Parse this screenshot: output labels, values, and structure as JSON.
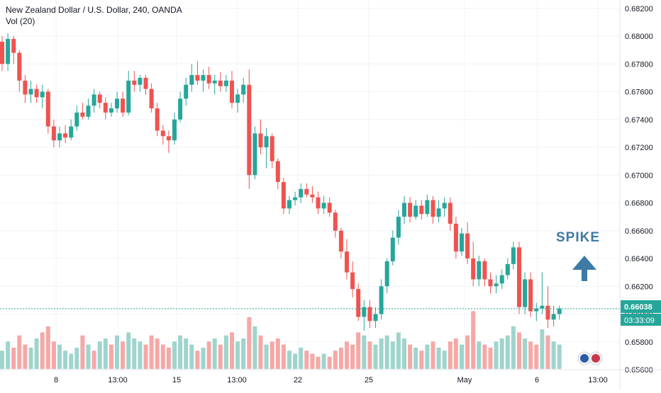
{
  "header": {
    "title": "New Zealand Dollar / U.S. Dollar, 240, OANDA",
    "volume_label": "Vol (20)"
  },
  "annotation": {
    "text": "SPIKE",
    "arrow_icon": "arrow-up-icon",
    "color": "#3d7aa6"
  },
  "price_tags": {
    "last_price": "0.66038",
    "countdown": "03:33:09",
    "color": "#26a69a"
  },
  "colors": {
    "up": "#26a69a",
    "down": "#ef5350",
    "vol_up": "#9fd4cd",
    "vol_down": "#f5a8a6",
    "grid": "#f0f3fa",
    "axis_text": "#131722"
  },
  "chart_data": {
    "type": "candlestick",
    "title": "New Zealand Dollar / U.S. Dollar, 240, OANDA",
    "ylim": [
      0.656,
      0.6826
    ],
    "y_ticks": [
      "0.68200",
      "0.68000",
      "0.67800",
      "0.67600",
      "0.67400",
      "0.67200",
      "0.67000",
      "0.66800",
      "0.66600",
      "0.66400",
      "0.66200",
      "0.66000",
      "0.65800",
      "0.65600"
    ],
    "x_ticks": [
      "8",
      "13:00",
      "15",
      "13:00",
      "22",
      "25",
      "May",
      "6",
      "13:00"
    ],
    "last_price": 0.66038,
    "grid": true,
    "candles": [
      [
        0.6796,
        0.68,
        0.6775,
        0.678
      ],
      [
        0.678,
        0.6802,
        0.6775,
        0.6798
      ],
      [
        0.6798,
        0.68,
        0.678,
        0.6788
      ],
      [
        0.6788,
        0.679,
        0.676,
        0.6768
      ],
      [
        0.6768,
        0.6772,
        0.6752,
        0.6758
      ],
      [
        0.6758,
        0.6768,
        0.6752,
        0.6762
      ],
      [
        0.6762,
        0.6765,
        0.6752,
        0.6756
      ],
      [
        0.6756,
        0.6765,
        0.6748,
        0.676
      ],
      [
        0.676,
        0.6762,
        0.673,
        0.6735
      ],
      [
        0.6735,
        0.674,
        0.672,
        0.6725
      ],
      [
        0.6725,
        0.6735,
        0.672,
        0.673
      ],
      [
        0.673,
        0.6736,
        0.6723,
        0.6727
      ],
      [
        0.6727,
        0.674,
        0.6725,
        0.6735
      ],
      [
        0.6735,
        0.675,
        0.6732,
        0.6745
      ],
      [
        0.6745,
        0.6752,
        0.674,
        0.6742
      ],
      [
        0.6742,
        0.6755,
        0.674,
        0.675
      ],
      [
        0.675,
        0.6762,
        0.6745,
        0.6758
      ],
      [
        0.6758,
        0.676,
        0.6748,
        0.6752
      ],
      [
        0.6752,
        0.6756,
        0.674,
        0.6745
      ],
      [
        0.6745,
        0.6752,
        0.6742,
        0.6748
      ],
      [
        0.6748,
        0.676,
        0.6745,
        0.6755
      ],
      [
        0.6755,
        0.676,
        0.6742,
        0.6745
      ],
      [
        0.6745,
        0.6775,
        0.6743,
        0.6768
      ],
      [
        0.6768,
        0.6775,
        0.676,
        0.6765
      ],
      [
        0.6765,
        0.6772,
        0.676,
        0.677
      ],
      [
        0.677,
        0.6772,
        0.6758,
        0.6762
      ],
      [
        0.6762,
        0.6766,
        0.6745,
        0.6748
      ],
      [
        0.6748,
        0.6752,
        0.6728,
        0.6732
      ],
      [
        0.6732,
        0.6736,
        0.6722,
        0.6728
      ],
      [
        0.6728,
        0.6732,
        0.6716,
        0.6725
      ],
      [
        0.6725,
        0.6745,
        0.6722,
        0.674
      ],
      [
        0.674,
        0.676,
        0.6738,
        0.6755
      ],
      [
        0.6755,
        0.677,
        0.675,
        0.6765
      ],
      [
        0.6765,
        0.678,
        0.676,
        0.6772
      ],
      [
        0.6772,
        0.6782,
        0.6765,
        0.6768
      ],
      [
        0.6768,
        0.6776,
        0.676,
        0.6772
      ],
      [
        0.6772,
        0.6778,
        0.6762,
        0.6766
      ],
      [
        0.6766,
        0.6772,
        0.6758,
        0.6768
      ],
      [
        0.6768,
        0.6774,
        0.676,
        0.6764
      ],
      [
        0.6764,
        0.6772,
        0.676,
        0.6768
      ],
      [
        0.6768,
        0.6775,
        0.6748,
        0.6752
      ],
      [
        0.6752,
        0.6762,
        0.6745,
        0.6758
      ],
      [
        0.6758,
        0.677,
        0.6752,
        0.6765
      ],
      [
        0.6765,
        0.6776,
        0.669,
        0.67
      ],
      [
        0.67,
        0.6735,
        0.6697,
        0.673
      ],
      [
        0.673,
        0.674,
        0.6715,
        0.672
      ],
      [
        0.672,
        0.6734,
        0.6705,
        0.6728
      ],
      [
        0.6728,
        0.673,
        0.6705,
        0.671
      ],
      [
        0.671,
        0.6712,
        0.669,
        0.6695
      ],
      [
        0.6695,
        0.6698,
        0.6672,
        0.6676
      ],
      [
        0.6676,
        0.6685,
        0.6672,
        0.6682
      ],
      [
        0.6682,
        0.6688,
        0.6678,
        0.6684
      ],
      [
        0.6684,
        0.6694,
        0.668,
        0.669
      ],
      [
        0.669,
        0.6694,
        0.6684,
        0.6686
      ],
      [
        0.6686,
        0.6692,
        0.668,
        0.6684
      ],
      [
        0.6684,
        0.6688,
        0.6672,
        0.6676
      ],
      [
        0.6676,
        0.6685,
        0.6672,
        0.668
      ],
      [
        0.668,
        0.6684,
        0.667,
        0.6673
      ],
      [
        0.6673,
        0.6675,
        0.6655,
        0.666
      ],
      [
        0.666,
        0.6662,
        0.664,
        0.6645
      ],
      [
        0.6645,
        0.6654,
        0.6625,
        0.663
      ],
      [
        0.663,
        0.6638,
        0.6612,
        0.6618
      ],
      [
        0.6618,
        0.6622,
        0.6595,
        0.6598
      ],
      [
        0.6598,
        0.661,
        0.6588,
        0.6605
      ],
      [
        0.6605,
        0.661,
        0.659,
        0.6595
      ],
      [
        0.6595,
        0.6605,
        0.659,
        0.66
      ],
      [
        0.66,
        0.6625,
        0.6596,
        0.662
      ],
      [
        0.662,
        0.664,
        0.6615,
        0.6638
      ],
      [
        0.6638,
        0.666,
        0.6635,
        0.6655
      ],
      [
        0.6655,
        0.6675,
        0.665,
        0.667
      ],
      [
        0.667,
        0.6685,
        0.6665,
        0.668
      ],
      [
        0.668,
        0.6684,
        0.6666,
        0.667
      ],
      [
        0.667,
        0.6682,
        0.6668,
        0.6678
      ],
      [
        0.6678,
        0.6682,
        0.6668,
        0.6672
      ],
      [
        0.6672,
        0.6686,
        0.667,
        0.6682
      ],
      [
        0.6682,
        0.6685,
        0.6665,
        0.667
      ],
      [
        0.667,
        0.6682,
        0.6666,
        0.6676
      ],
      [
        0.6676,
        0.6684,
        0.667,
        0.668
      ],
      [
        0.668,
        0.6684,
        0.666,
        0.6665
      ],
      [
        0.6665,
        0.667,
        0.664,
        0.6645
      ],
      [
        0.6645,
        0.6662,
        0.6642,
        0.6658
      ],
      [
        0.6658,
        0.6666,
        0.6636,
        0.664
      ],
      [
        0.664,
        0.6652,
        0.662,
        0.6625
      ],
      [
        0.6625,
        0.6642,
        0.662,
        0.6638
      ],
      [
        0.6638,
        0.664,
        0.662,
        0.6625
      ],
      [
        0.6625,
        0.663,
        0.6615,
        0.662
      ],
      [
        0.662,
        0.6628,
        0.6615,
        0.6622
      ],
      [
        0.6622,
        0.6632,
        0.6618,
        0.6628
      ],
      [
        0.6628,
        0.664,
        0.6625,
        0.6636
      ],
      [
        0.6636,
        0.6652,
        0.6632,
        0.6648
      ],
      [
        0.6648,
        0.6652,
        0.66,
        0.6605
      ],
      [
        0.6605,
        0.663,
        0.66,
        0.6625
      ],
      [
        0.6625,
        0.663,
        0.6598,
        0.6602
      ],
      [
        0.6602,
        0.6608,
        0.6595,
        0.6604
      ],
      [
        0.6604,
        0.663,
        0.66,
        0.6606
      ],
      [
        0.6606,
        0.662,
        0.659,
        0.6596
      ],
      [
        0.6596,
        0.6606,
        0.6591,
        0.66
      ],
      [
        0.66,
        0.6606,
        0.6596,
        0.6604
      ]
    ],
    "volume_scale": [
      0,
      1
    ],
    "volumes": [
      [
        0.3,
        1
      ],
      [
        0.45,
        1
      ],
      [
        0.35,
        0
      ],
      [
        0.55,
        0
      ],
      [
        0.4,
        0
      ],
      [
        0.35,
        1
      ],
      [
        0.5,
        1
      ],
      [
        0.6,
        0
      ],
      [
        0.7,
        0
      ],
      [
        0.45,
        0
      ],
      [
        0.4,
        1
      ],
      [
        0.3,
        1
      ],
      [
        0.25,
        1
      ],
      [
        0.35,
        1
      ],
      [
        0.55,
        0
      ],
      [
        0.4,
        1
      ],
      [
        0.3,
        0
      ],
      [
        0.45,
        1
      ],
      [
        0.5,
        1
      ],
      [
        0.4,
        0
      ],
      [
        0.55,
        1
      ],
      [
        0.45,
        0
      ],
      [
        0.6,
        1
      ],
      [
        0.5,
        1
      ],
      [
        0.45,
        1
      ],
      [
        0.4,
        0
      ],
      [
        0.55,
        0
      ],
      [
        0.5,
        0
      ],
      [
        0.4,
        0
      ],
      [
        0.35,
        0
      ],
      [
        0.45,
        1
      ],
      [
        0.55,
        1
      ],
      [
        0.5,
        1
      ],
      [
        0.4,
        1
      ],
      [
        0.3,
        0
      ],
      [
        0.35,
        1
      ],
      [
        0.45,
        0
      ],
      [
        0.5,
        1
      ],
      [
        0.4,
        0
      ],
      [
        0.55,
        1
      ],
      [
        0.6,
        0
      ],
      [
        0.45,
        1
      ],
      [
        0.5,
        1
      ],
      [
        0.85,
        0
      ],
      [
        0.7,
        1
      ],
      [
        0.55,
        0
      ],
      [
        0.4,
        1
      ],
      [
        0.45,
        0
      ],
      [
        0.5,
        0
      ],
      [
        0.4,
        0
      ],
      [
        0.3,
        1
      ],
      [
        0.25,
        1
      ],
      [
        0.35,
        1
      ],
      [
        0.3,
        0
      ],
      [
        0.25,
        0
      ],
      [
        0.2,
        0
      ],
      [
        0.25,
        1
      ],
      [
        0.2,
        0
      ],
      [
        0.3,
        0
      ],
      [
        0.35,
        0
      ],
      [
        0.45,
        0
      ],
      [
        0.4,
        0
      ],
      [
        0.6,
        0
      ],
      [
        0.55,
        1
      ],
      [
        0.45,
        0
      ],
      [
        0.4,
        1
      ],
      [
        0.5,
        1
      ],
      [
        0.55,
        1
      ],
      [
        0.45,
        1
      ],
      [
        0.6,
        1
      ],
      [
        0.5,
        1
      ],
      [
        0.4,
        0
      ],
      [
        0.35,
        1
      ],
      [
        0.3,
        0
      ],
      [
        0.4,
        1
      ],
      [
        0.45,
        0
      ],
      [
        0.35,
        1
      ],
      [
        0.3,
        1
      ],
      [
        0.45,
        0
      ],
      [
        0.5,
        0
      ],
      [
        0.4,
        1
      ],
      [
        0.55,
        0
      ],
      [
        0.95,
        0
      ],
      [
        0.45,
        1
      ],
      [
        0.4,
        0
      ],
      [
        0.35,
        0
      ],
      [
        0.45,
        1
      ],
      [
        0.5,
        1
      ],
      [
        0.55,
        1
      ],
      [
        0.7,
        1
      ],
      [
        0.6,
        0
      ],
      [
        0.5,
        1
      ],
      [
        0.45,
        0
      ],
      [
        0.4,
        0
      ],
      [
        0.65,
        1
      ],
      [
        0.55,
        0
      ],
      [
        0.45,
        1
      ],
      [
        0.4,
        1
      ]
    ]
  }
}
